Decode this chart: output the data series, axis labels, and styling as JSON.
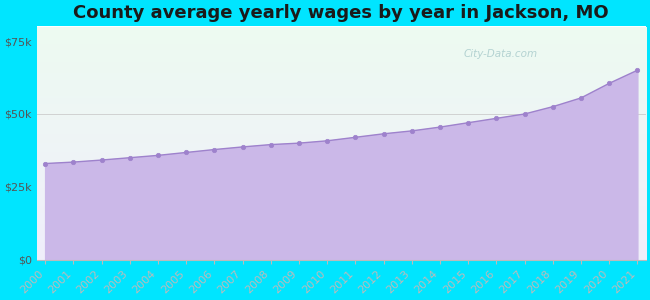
{
  "title": "County average yearly wages by year in Jackson, MO",
  "years": [
    2000,
    2001,
    2002,
    2003,
    2004,
    2005,
    2006,
    2007,
    2008,
    2009,
    2010,
    2011,
    2012,
    2013,
    2014,
    2015,
    2016,
    2017,
    2018,
    2019,
    2020,
    2021
  ],
  "wages": [
    33000,
    33500,
    34200,
    35000,
    35800,
    36800,
    37800,
    38700,
    39500,
    40000,
    40800,
    42000,
    43200,
    44200,
    45500,
    47000,
    48500,
    50000,
    52500,
    55500,
    60500,
    65000
  ],
  "yticks": [
    0,
    25000,
    50000,
    75000
  ],
  "ytick_labels": [
    "$0",
    "$25k",
    "$50k",
    "$75k"
  ],
  "ymax": 80000,
  "fill_color": "#cbb8e8",
  "line_color": "#9e82cc",
  "marker_color": "#9e82cc",
  "bg_outer": "#00e5ff",
  "bg_plot_top": "#edfbf1",
  "bg_plot_bottom": "#f0eefb",
  "grid_color": "#cccccc",
  "watermark": "City-Data.com",
  "title_fontsize": 13,
  "tick_fontsize": 8,
  "tick_color": "#555555",
  "spine_color": "#bbbbbb"
}
